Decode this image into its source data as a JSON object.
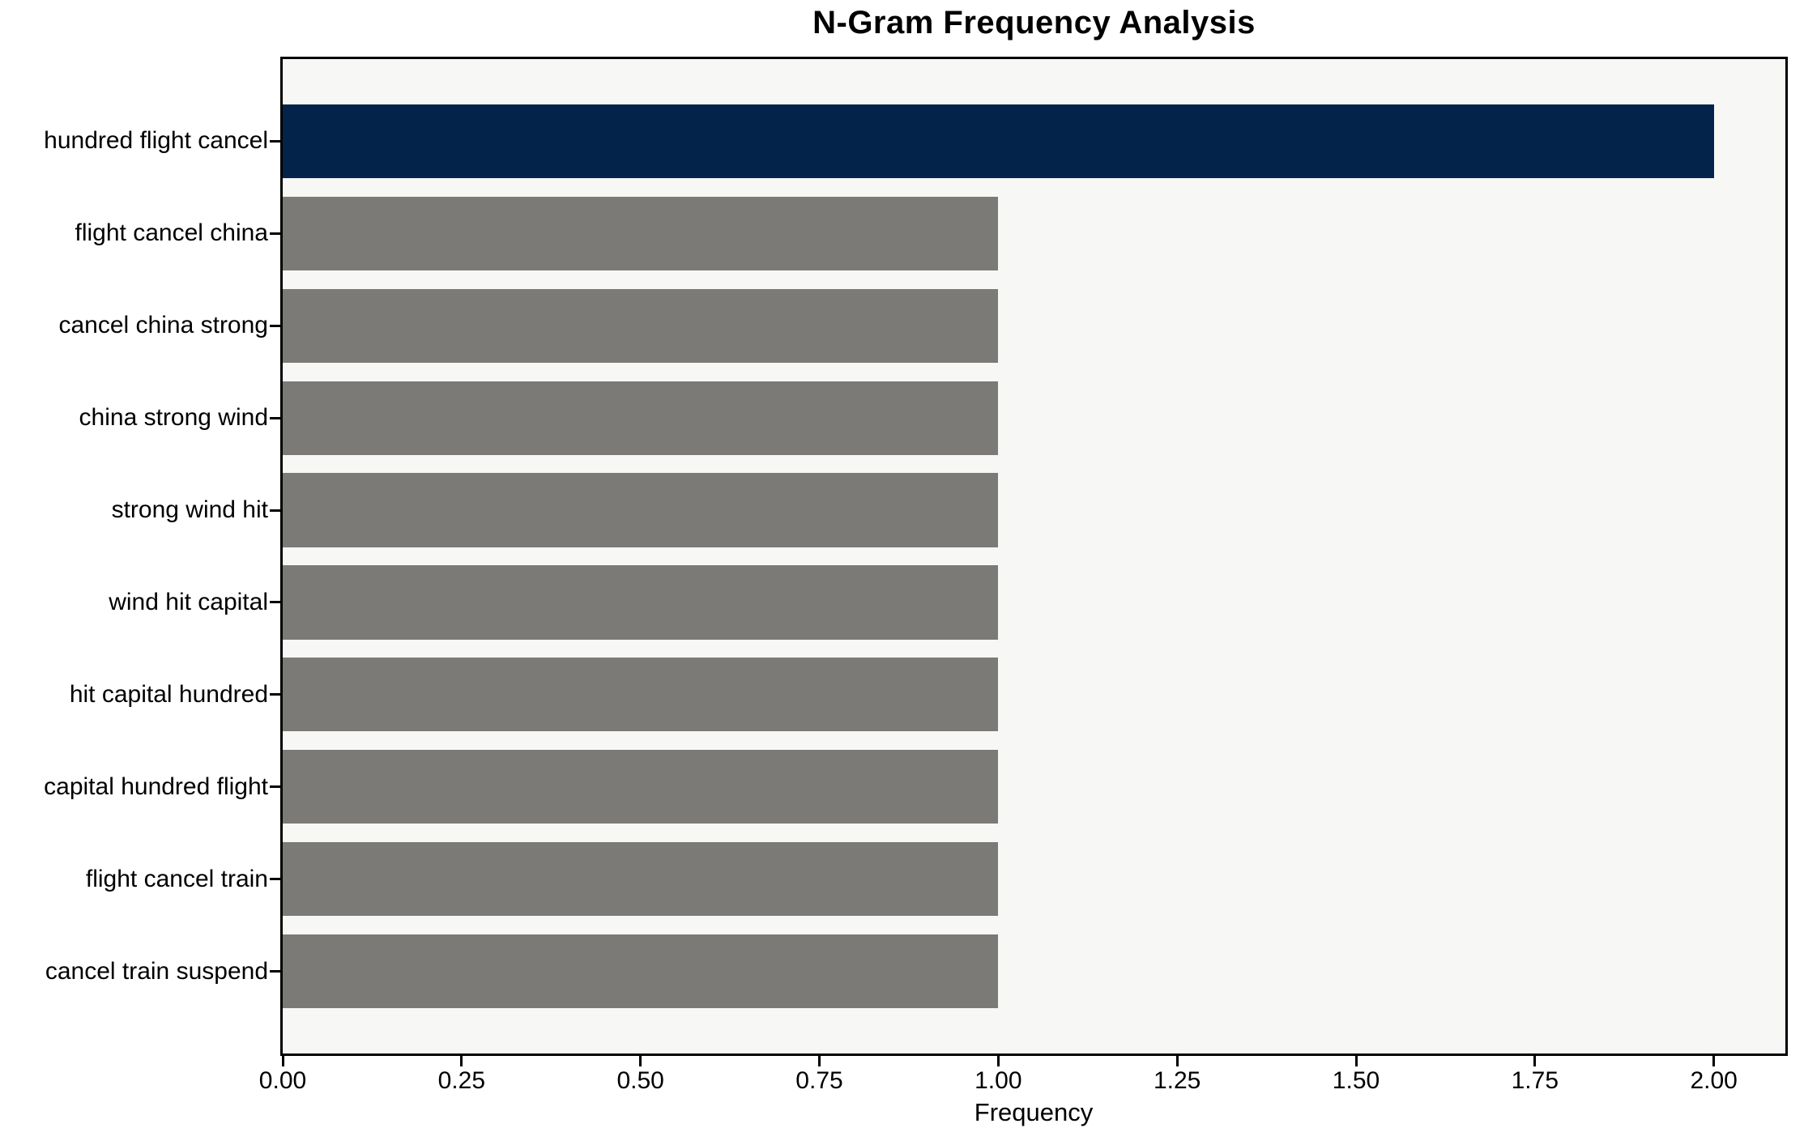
{
  "chart_data": {
    "type": "bar",
    "orientation": "horizontal",
    "title": "N-Gram Frequency Analysis",
    "xlabel": "Frequency",
    "ylabel": "",
    "categories": [
      "hundred flight cancel",
      "flight cancel china",
      "cancel china strong",
      "china strong wind",
      "strong wind hit",
      "wind hit capital",
      "hit capital hundred",
      "capital hundred flight",
      "flight cancel train",
      "cancel train suspend"
    ],
    "values": [
      2,
      1,
      1,
      1,
      1,
      1,
      1,
      1,
      1,
      1
    ],
    "bar_colors": [
      "#04234a",
      "#7b7a77",
      "#7b7a77",
      "#7b7a77",
      "#7b7a77",
      "#7b7a77",
      "#7b7a77",
      "#7b7a77",
      "#7b7a77",
      "#7b7a77"
    ],
    "xlim": [
      0,
      2.1
    ],
    "xticks": [
      0.0,
      0.25,
      0.5,
      0.75,
      1.0,
      1.25,
      1.5,
      1.75,
      2.0
    ],
    "xtick_labels": [
      "0.00",
      "0.25",
      "0.50",
      "0.75",
      "1.00",
      "1.25",
      "1.50",
      "1.75",
      "2.00"
    ],
    "bar_height_fraction": 0.8,
    "grid": false,
    "legend": "none",
    "colors": {
      "highlight_bar": "#04234a",
      "default_bar": "#7b7a77",
      "plot_background": "#f7f7f6",
      "figure_background": "#ffffff",
      "spine": "#000000",
      "text": "#000000"
    }
  }
}
